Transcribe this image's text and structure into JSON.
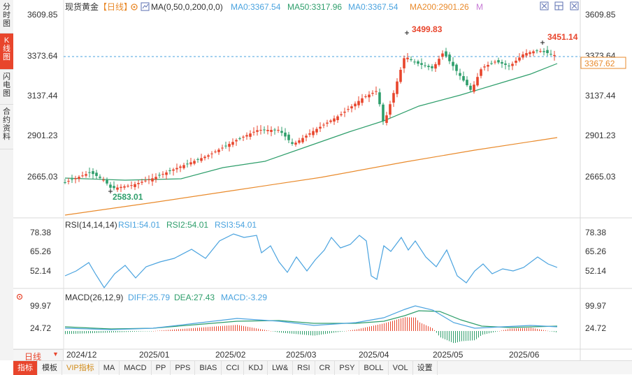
{
  "left_tabs": [
    {
      "label": "分时图",
      "active": false
    },
    {
      "label": "K线图",
      "active": true
    },
    {
      "label": "闪电图",
      "active": false
    },
    {
      "label": "合约资料",
      "active": false
    }
  ],
  "main_panel": {
    "instrument": "现货黄金",
    "period_tag": "【日线】",
    "ma_label": "MA(0,50,0,200,0,0)",
    "ma_values": [
      {
        "text": "MA0:3367.54",
        "color": "#4aa3df"
      },
      {
        "text": "MA50:3317.96",
        "color": "#2e9e6b"
      },
      {
        "text": "MA0:3367.54",
        "color": "#4aa3df"
      },
      {
        "text": "MA200:2901.26",
        "color": "#e98a2b"
      },
      {
        "text": "M",
        "color": "#c77bd6"
      }
    ],
    "y_ticks": [
      "3609.85",
      "3373.64",
      "3137.44",
      "2901.23",
      "2665.03"
    ],
    "last_price": "3367.62",
    "annotations": {
      "high1": "3499.83",
      "high2": "3451.14",
      "low": "2583.01"
    }
  },
  "rsi_panel": {
    "title": "RSI(14,14,14)",
    "values": [
      {
        "text": "RSI1:54.01",
        "color": "#4aa3df"
      },
      {
        "text": "RSI2:54.01",
        "color": "#2e9e6b"
      },
      {
        "text": "RSI3:54.01",
        "color": "#4aa3df"
      }
    ],
    "y_ticks": [
      "78.38",
      "65.26",
      "52.14"
    ]
  },
  "macd_panel": {
    "title": "MACD(26,12,9)",
    "values": [
      {
        "text": "DIFF:25.79",
        "color": "#4aa3df"
      },
      {
        "text": "DEA:27.43",
        "color": "#2e9e6b"
      },
      {
        "text": "MACD:-3.29",
        "color": "#4aa3df"
      }
    ],
    "y_ticks": [
      "99.97",
      "24.72"
    ]
  },
  "x_labels": [
    "2024/12",
    "2025/01",
    "2025/02",
    "2025/03",
    "2025/04",
    "2025/05",
    "2025/06"
  ],
  "period_selector": {
    "label": "日线",
    "arrow": "▼"
  },
  "toolbar": [
    "指标",
    "模板",
    "VIP指标",
    "MA",
    "MACD",
    "PP",
    "PPS",
    "BIAS",
    "CCI",
    "KDJ",
    "LW&",
    "RSI",
    "CR",
    "PSY",
    "BOLL",
    "VOL",
    "设置"
  ],
  "chart_data": {
    "type": "candlestick",
    "x_range": [
      "2024-12",
      "2025-06"
    ],
    "ylim": [
      2665.03,
      3609.85
    ],
    "anchor_prices": [
      {
        "date": "2024-12",
        "close": 2650
      },
      {
        "date": "2024-12-30",
        "low": 2583.01
      },
      {
        "date": "2025-01",
        "close": 2640
      },
      {
        "date": "2025-02",
        "close": 2780
      },
      {
        "date": "2025-02-end",
        "close": 2940
      },
      {
        "date": "2025-03",
        "close": 2930
      },
      {
        "date": "2025-04",
        "close": 3120
      },
      {
        "date": "2025-04-22",
        "high": 3499.83
      },
      {
        "date": "2025-05",
        "close": 3250
      },
      {
        "date": "2025-06",
        "close": 3340
      },
      {
        "date": "2025-06-16",
        "high": 3451.14
      },
      {
        "date": "2025-06-last",
        "close": 3367.62
      }
    ],
    "series": [
      {
        "name": "MA50",
        "value": 3317.96
      },
      {
        "name": "MA200",
        "value": 2901.26
      }
    ],
    "rsi_ylim": [
      52.14,
      78.38
    ],
    "macd_ylim": [
      24.72,
      99.97
    ]
  }
}
